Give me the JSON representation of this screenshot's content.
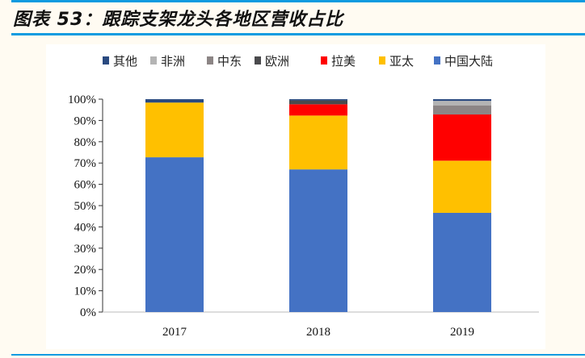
{
  "title": "图表 53：跟踪支架龙头各地区营收占比",
  "chart_data": {
    "type": "bar",
    "stacked": true,
    "categories": [
      "2017",
      "2018",
      "2019"
    ],
    "ylim": [
      0,
      100
    ],
    "yticks": [
      "0%",
      "10%",
      "20%",
      "30%",
      "40%",
      "50%",
      "60%",
      "70%",
      "80%",
      "90%",
      "100%"
    ],
    "legend_position": "top",
    "series": [
      {
        "name": "中国大陆",
        "color": "#4472c4",
        "values": [
          72.7,
          67.0,
          46.6
        ]
      },
      {
        "name": "亚太",
        "color": "#ffc000",
        "values": [
          25.7,
          25.3,
          24.5
        ]
      },
      {
        "name": "拉美",
        "color": "#ff0000",
        "values": [
          0,
          5.3,
          21.7
        ]
      },
      {
        "name": "欧洲",
        "color": "#4a4a4d",
        "values": [
          0,
          1.8,
          0
        ]
      },
      {
        "name": "中东",
        "color": "#8c8585",
        "values": [
          0,
          0,
          4.3
        ]
      },
      {
        "name": "非洲",
        "color": "#b4b4b4",
        "values": [
          0,
          0,
          2.1
        ]
      },
      {
        "name": "其他",
        "color": "#2a4a80",
        "values": [
          1.6,
          0.6,
          0.8
        ]
      }
    ],
    "legend_order": [
      "其他",
      "非洲",
      "中东",
      "欧洲",
      "拉美",
      "亚太",
      "中国大陆"
    ]
  }
}
